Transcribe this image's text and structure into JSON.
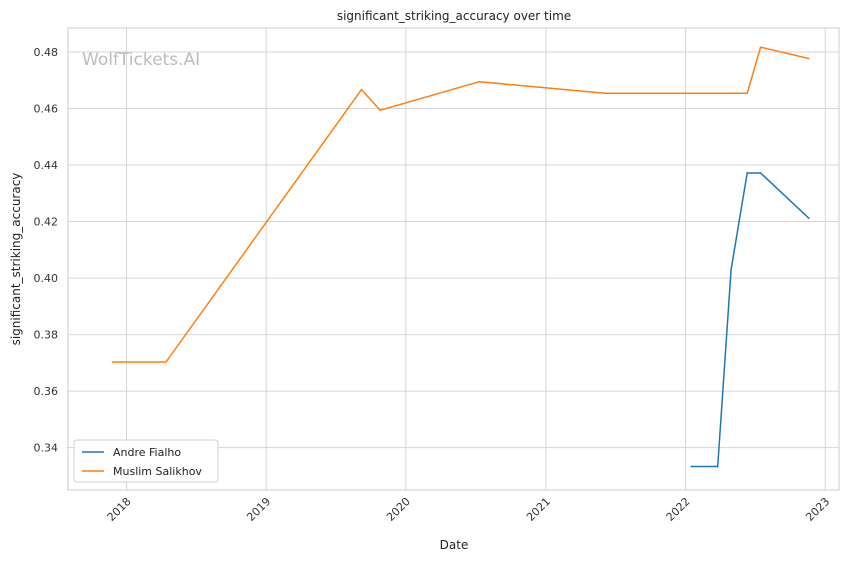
{
  "chart_data": {
    "type": "line",
    "title": "significant_striking_accuracy over time",
    "xlabel": "Date",
    "ylabel": "significant_striking_accuracy",
    "watermark": "WolfTickets.AI",
    "x_range": [
      "2017-08-01",
      "2023-02-06"
    ],
    "ylim": [
      0.325,
      0.4885
    ],
    "x_ticks": [
      {
        "date": "2018-01-01",
        "label": "2018"
      },
      {
        "date": "2019-01-01",
        "label": "2019"
      },
      {
        "date": "2020-01-01",
        "label": "2020"
      },
      {
        "date": "2021-01-01",
        "label": "2021"
      },
      {
        "date": "2022-01-01",
        "label": "2022"
      },
      {
        "date": "2023-01-01",
        "label": "2023"
      }
    ],
    "y_ticks": [
      {
        "value": 0.34,
        "label": "0.34"
      },
      {
        "value": 0.36,
        "label": "0.36"
      },
      {
        "value": 0.38,
        "label": "0.38"
      },
      {
        "value": 0.4,
        "label": "0.40"
      },
      {
        "value": 0.42,
        "label": "0.42"
      },
      {
        "value": 0.44,
        "label": "0.44"
      },
      {
        "value": 0.46,
        "label": "0.46"
      },
      {
        "value": 0.48,
        "label": "0.48"
      }
    ],
    "grid": true,
    "legend_position": "lower-left",
    "series": [
      {
        "name": "Andre Fialho",
        "color": "#1f77b4",
        "points": [
          {
            "x": "2022-01-16",
            "y": 0.3333
          },
          {
            "x": "2022-03-26",
            "y": 0.3333
          },
          {
            "x": "2022-04-30",
            "y": 0.403
          },
          {
            "x": "2022-06-11",
            "y": 0.4372
          },
          {
            "x": "2022-07-16",
            "y": 0.4372
          },
          {
            "x": "2022-11-19",
            "y": 0.4212
          }
        ]
      },
      {
        "name": "Muslim Salikhov",
        "color": "#ff7f0e",
        "points": [
          {
            "x": "2017-11-25",
            "y": 0.3703
          },
          {
            "x": "2018-04-14",
            "y": 0.3703
          },
          {
            "x": "2019-09-07",
            "y": 0.4667
          },
          {
            "x": "2019-10-26",
            "y": 0.4594
          },
          {
            "x": "2020-07-11",
            "y": 0.4695
          },
          {
            "x": "2021-06-05",
            "y": 0.4654
          },
          {
            "x": "2022-06-11",
            "y": 0.4654
          },
          {
            "x": "2022-07-16",
            "y": 0.4817
          },
          {
            "x": "2022-11-19",
            "y": 0.4777
          }
        ]
      }
    ]
  }
}
